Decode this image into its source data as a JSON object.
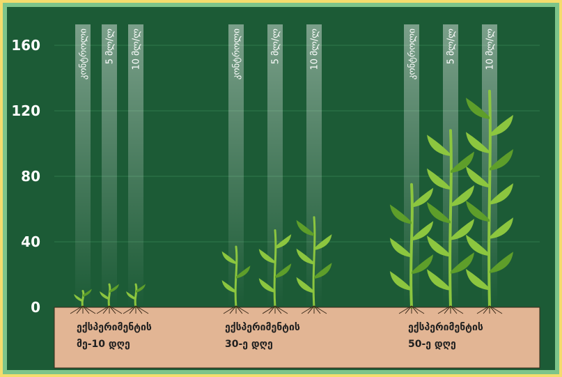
{
  "chart_data": {
    "type": "bar",
    "title": "",
    "xlabel": "",
    "ylabel": "",
    "ylim": [
      0,
      175
    ],
    "yticks": [
      0,
      40,
      80,
      120,
      160
    ],
    "grid": true,
    "column_labels": [
      "კონტროლი",
      "5 მლ/ლ",
      "10 მლ/ლ"
    ],
    "groups": [
      {
        "label_line1": "ექსპერიმენტის",
        "label_line2": "მე-10 დღე",
        "values": [
          10,
          14,
          14
        ]
      },
      {
        "label_line1": "ექსპერიმენტის",
        "label_line2": "30-ე დღე",
        "values": [
          37,
          47,
          55
        ]
      },
      {
        "label_line1": "ექსპერიმენტის",
        "label_line2": "50-ე დღე",
        "values": [
          75,
          108,
          132
        ]
      }
    ]
  },
  "colors": {
    "frame": "#f4dc6d",
    "border": "#7cc48a",
    "background": "#1c5b36",
    "soil": "#e2b594",
    "plant": "#8cc63f",
    "plant_dark": "#5e9e2a",
    "text_light": "#ffffff",
    "text_dark": "#1f1f1f"
  }
}
